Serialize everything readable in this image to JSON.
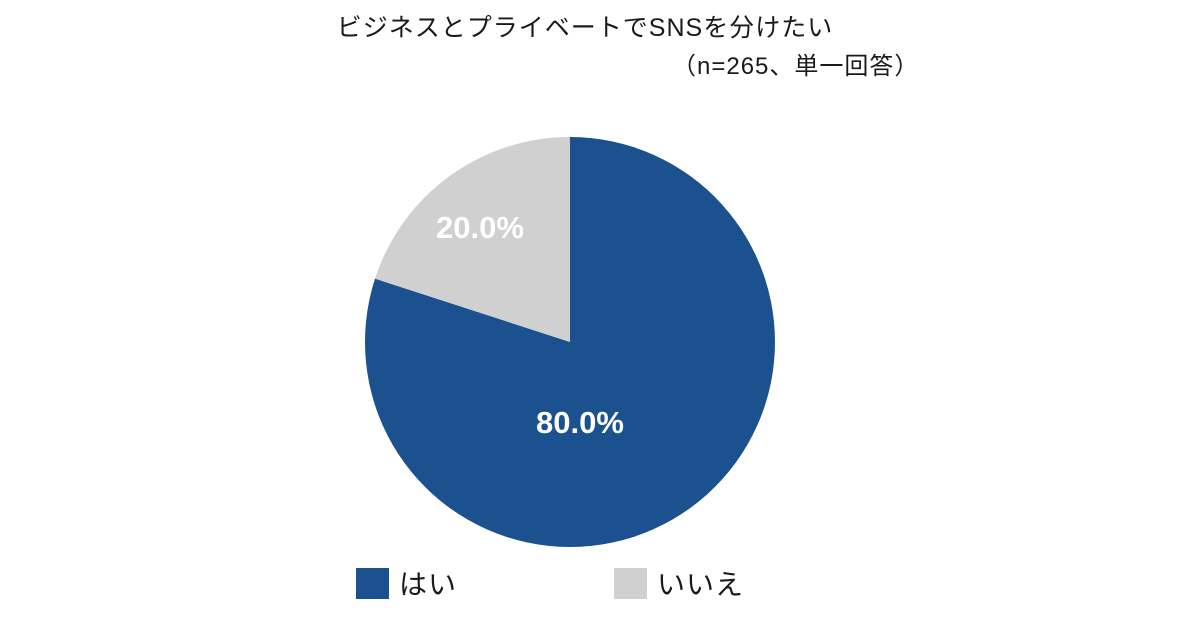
{
  "chart_data": {
    "type": "pie",
    "title": "ビジネスとプライベートでSNSを分けたい",
    "subtitle": "（n=265、単一回答）",
    "start_angle_deg": 0,
    "direction": "clockwise",
    "legend_position": "bottom",
    "slices": [
      {
        "label": "はい",
        "value": 80.0,
        "display": "80.0%",
        "color": "#1b518f",
        "label_color": "#ffffff"
      },
      {
        "label": "いいえ",
        "value": 20.0,
        "display": "20.0%",
        "color": "#d0d0d0",
        "label_color": "#ffffff"
      }
    ]
  }
}
